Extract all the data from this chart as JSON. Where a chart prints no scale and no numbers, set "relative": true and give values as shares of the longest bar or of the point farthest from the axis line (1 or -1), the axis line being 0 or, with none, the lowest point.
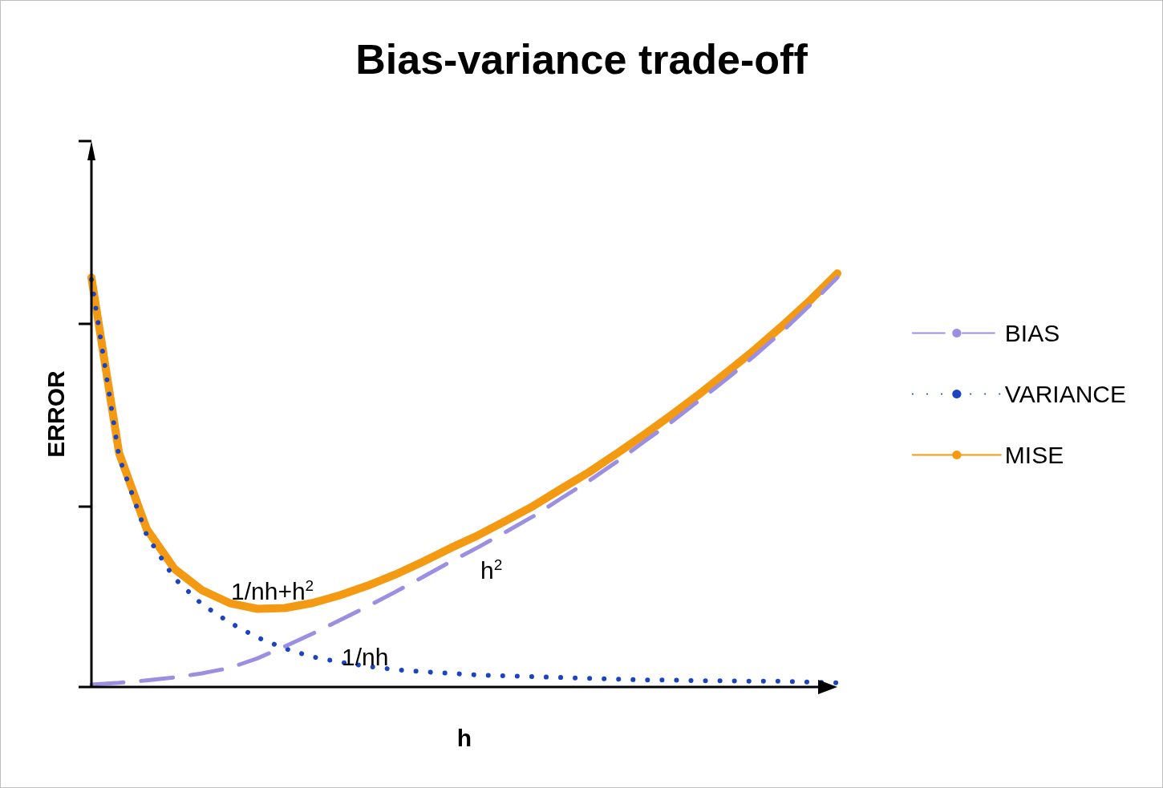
{
  "chart_data": {
    "type": "line",
    "title": "Bias-variance trade-off",
    "xlabel": "h",
    "ylabel": "ERROR",
    "relative": true,
    "categories": [
      null,
      null,
      null,
      null,
      null,
      null,
      null,
      null,
      null,
      null,
      null,
      null,
      null,
      null,
      null,
      null,
      null,
      null,
      null,
      null,
      null,
      null,
      null,
      null,
      null,
      null,
      null,
      null
    ],
    "series": [
      {
        "name": "BIAS",
        "color": "#9b8fe3",
        "line_style": "dashed",
        "values": [
          0.006,
          0.01,
          0.016,
          0.023,
          0.033,
          0.046,
          0.069,
          0.098,
          0.129,
          0.162,
          0.195,
          0.23,
          0.266,
          0.303,
          0.338,
          0.375,
          0.413,
          0.456,
          0.498,
          0.544,
          0.593,
          0.641,
          0.693,
          0.745,
          0.801,
          0.859,
          0.923,
          0.99
        ]
      },
      {
        "name": "VARIANCE",
        "color": "#1a44c2",
        "line_style": "dotted",
        "values": [
          0.985,
          0.556,
          0.367,
          0.263,
          0.2,
          0.156,
          0.12,
          0.093,
          0.073,
          0.06,
          0.05,
          0.042,
          0.037,
          0.033,
          0.029,
          0.027,
          0.025,
          0.023,
          0.021,
          0.019,
          0.017,
          0.017,
          0.015,
          0.015,
          0.014,
          0.014,
          0.012,
          0.01
        ]
      },
      {
        "name": "MISE",
        "color": "#f39a12",
        "line_style": "solid",
        "values": [
          0.99,
          0.566,
          0.382,
          0.286,
          0.234,
          0.203,
          0.189,
          0.191,
          0.203,
          0.222,
          0.245,
          0.272,
          0.303,
          0.336,
          0.367,
          0.402,
          0.438,
          0.479,
          0.519,
          0.564,
          0.61,
          0.658,
          0.708,
          0.761,
          0.815,
          0.873,
          0.934,
          1.0
        ]
      }
    ],
    "annotations": [
      "1/nh+h$^{2}$",
      "h$^{2}$",
      "1/nh"
    ],
    "marker": "none",
    "legend": "right",
    "grid": false
  }
}
